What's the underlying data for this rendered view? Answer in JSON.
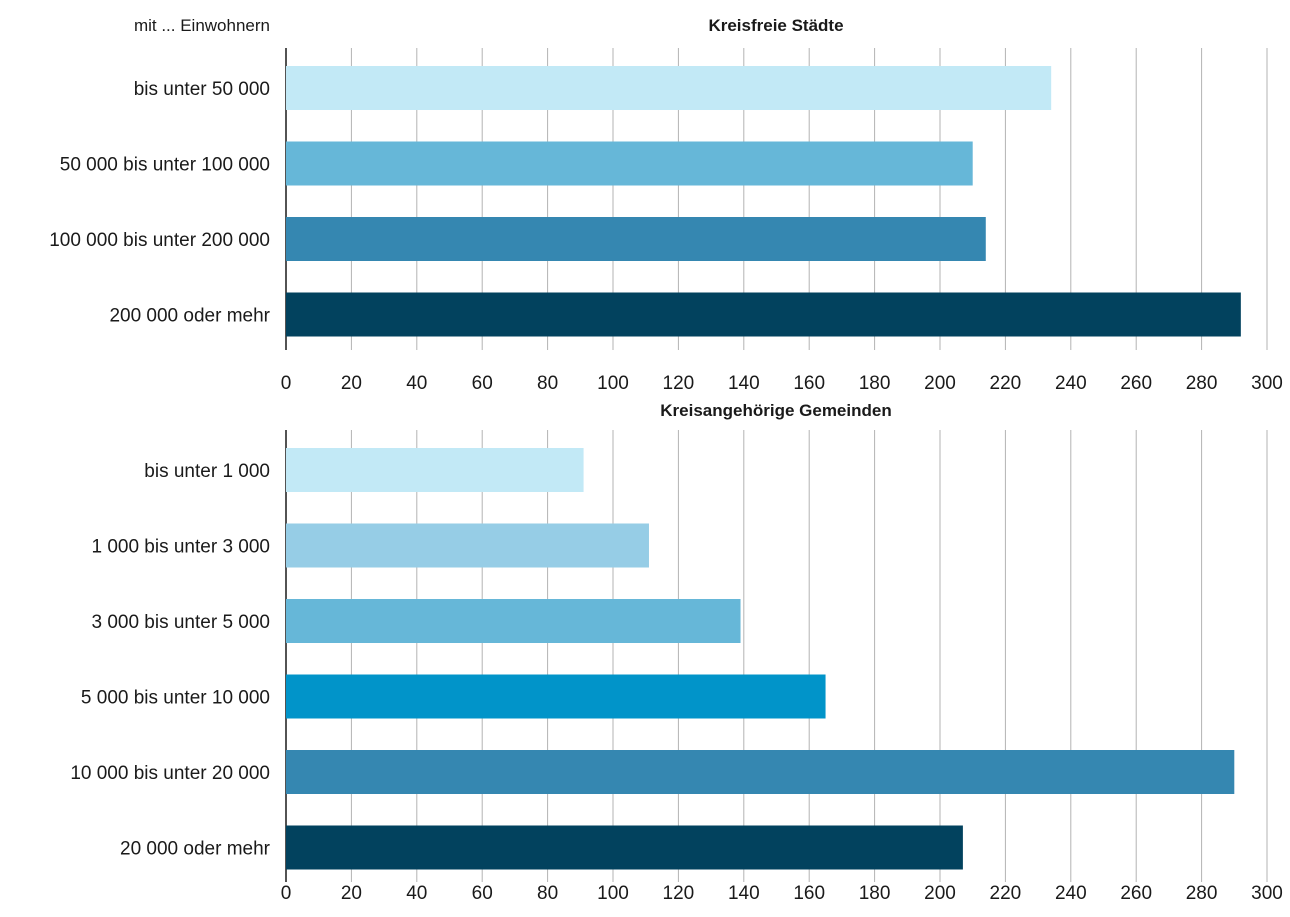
{
  "header": {
    "group_label": "mit ... Einwohnern"
  },
  "chart_data": [
    {
      "type": "bar",
      "orientation": "horizontal",
      "title": "Kreisfreie Städte",
      "xlim": [
        0,
        300
      ],
      "xticks": [
        0,
        20,
        40,
        60,
        80,
        100,
        120,
        140,
        160,
        180,
        200,
        220,
        240,
        260,
        280,
        300
      ],
      "grid": "vertical",
      "categories": [
        "bis unter 50 000",
        "50 000 bis unter 100 000",
        "100 000 bis unter 200 000",
        "200 000 oder mehr"
      ],
      "values": [
        234,
        210,
        214,
        292
      ],
      "colors": [
        "#c2e9f6",
        "#66b7d8",
        "#3587b1",
        "#02425e"
      ]
    },
    {
      "type": "bar",
      "orientation": "horizontal",
      "title": "Kreisangehörige Gemeinden",
      "xlim": [
        0,
        300
      ],
      "xticks": [
        0,
        20,
        40,
        60,
        80,
        100,
        120,
        140,
        160,
        180,
        200,
        220,
        240,
        260,
        280,
        300
      ],
      "grid": "vertical",
      "categories": [
        "bis unter 1 000",
        "1 000 bis unter 3 000",
        "3 000 bis unter 5 000",
        "5 000 bis unter 10 000",
        "10 000 bis unter 20 000",
        "20 000 oder mehr"
      ],
      "values": [
        91,
        111,
        139,
        165,
        290,
        207
      ],
      "colors": [
        "#c2e9f6",
        "#96cde6",
        "#66b7d8",
        "#0194c9",
        "#3587b1",
        "#02425e"
      ]
    }
  ]
}
